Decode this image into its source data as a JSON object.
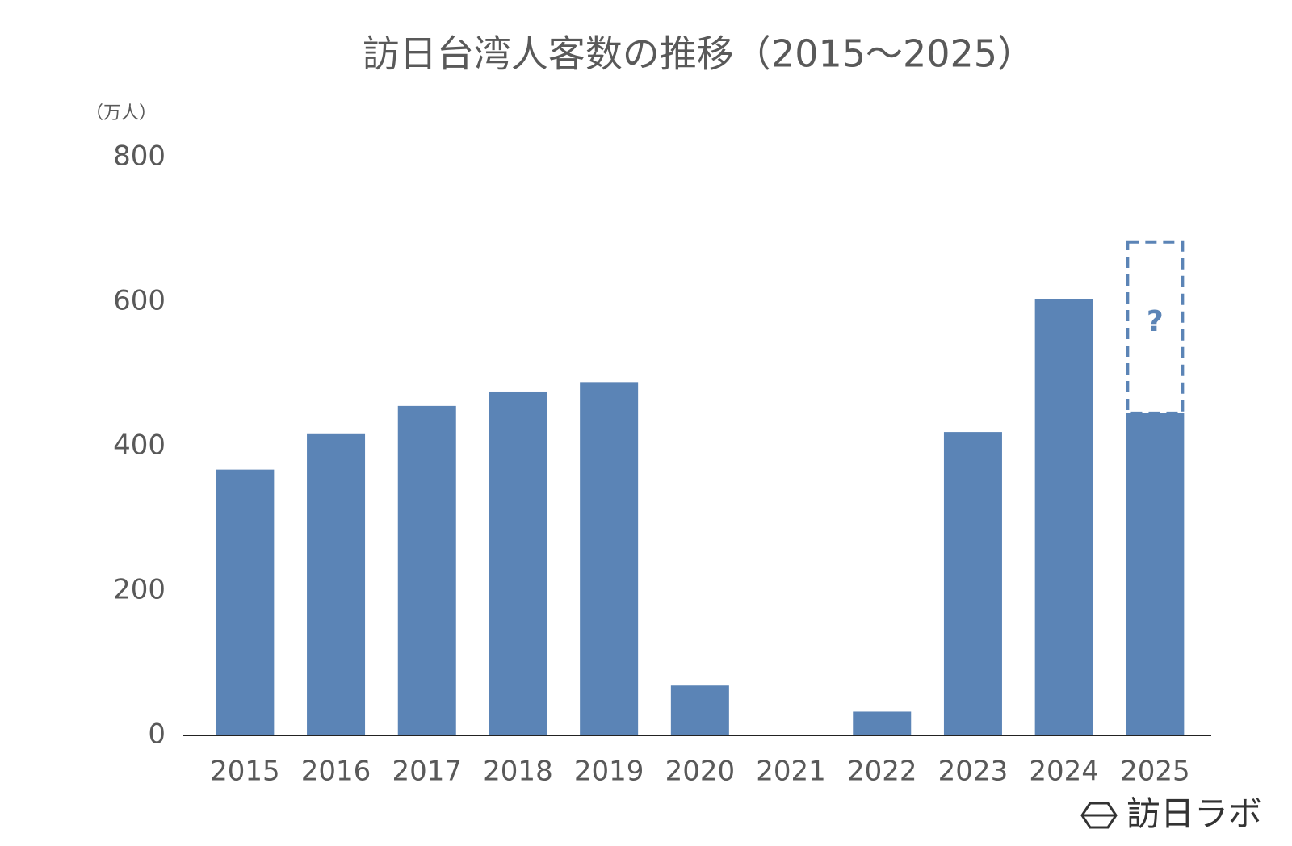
{
  "chart_data": {
    "type": "bar",
    "title": "訪日台湾人客数の推移（2015～2025）",
    "y_label": "（万人）",
    "categories": [
      "2015",
      "2016",
      "2017",
      "2018",
      "2019",
      "2020",
      "2021",
      "2022",
      "2023",
      "2024",
      "2025"
    ],
    "values": [
      368,
      417,
      456,
      476,
      489,
      69,
      0,
      33,
      420,
      604,
      446
    ],
    "projected_values": [
      null,
      null,
      null,
      null,
      null,
      null,
      null,
      null,
      null,
      null,
      237
    ],
    "projection_label": "?",
    "color": "#5b84b6",
    "ylim": [
      0,
      800
    ],
    "yticks": [
      0,
      200,
      400,
      600,
      800
    ],
    "grid": false
  },
  "logo": "訪日ラボ"
}
